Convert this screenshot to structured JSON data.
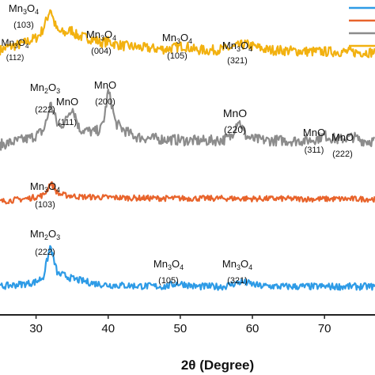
{
  "chart_data": {
    "type": "line",
    "title": "",
    "xlabel": "2θ (Degree)",
    "ylabel": "",
    "xlim": [
      25,
      77
    ],
    "ylim": [
      0,
      100
    ],
    "x_ticks": [
      30,
      40,
      50,
      60,
      70
    ],
    "grid": false,
    "legend": {
      "placement": "top-right",
      "entries": [
        {
          "name": "",
          "color": "#2e9be6"
        },
        {
          "name": "",
          "color": "#e8642c"
        },
        {
          "name": "",
          "color": "#8c8c8c"
        },
        {
          "name": "",
          "color": "#f2b110"
        }
      ]
    },
    "series": [
      {
        "color": "#f2b110",
        "x": [
          25,
          26,
          27,
          28,
          29,
          30,
          30.5,
          31,
          31.5,
          32,
          32.5,
          33,
          34,
          35,
          35.5,
          36,
          37,
          38,
          39,
          40,
          41,
          42,
          44,
          46,
          48,
          49.5,
          50.5,
          52,
          54,
          56,
          57.5,
          59,
          60.5,
          62,
          64,
          66,
          68,
          70,
          72,
          74,
          76,
          77
        ],
        "y": [
          84,
          85,
          85.5,
          86,
          87,
          88,
          89,
          91,
          94,
          97.5,
          93,
          90,
          89.5,
          90.5,
          89,
          88.5,
          88,
          87.5,
          86.5,
          86.8,
          86,
          85.5,
          85,
          84.6,
          84.4,
          85,
          85.5,
          84.2,
          84,
          84.4,
          85,
          86,
          85,
          84.2,
          84,
          83.8,
          83.6,
          83.6,
          83.6,
          83.4,
          83.4,
          83.4
        ]
      },
      {
        "color": "#8c8c8c",
        "x": [
          25,
          27,
          29,
          30,
          31,
          31.5,
          32,
          32.5,
          33,
          34,
          34.5,
          35,
          35.5,
          36,
          37,
          38,
          39,
          39.5,
          40,
          40.5,
          41,
          42,
          43,
          44,
          46,
          48,
          50,
          52,
          54,
          56,
          57,
          57.5,
          58,
          58.5,
          59,
          60,
          62,
          64,
          66,
          68,
          69,
          70,
          71,
          72,
          73,
          74,
          75,
          76,
          77
        ],
        "y": [
          54,
          55,
          56,
          57,
          58.5,
          62,
          67,
          64,
          60,
          61,
          64,
          66,
          63,
          59,
          58.5,
          58,
          59,
          63,
          71,
          67,
          61,
          59,
          57.5,
          56.5,
          56,
          55.8,
          55.5,
          55.3,
          55.3,
          55.6,
          56.5,
          59,
          62,
          60,
          57,
          55.8,
          55.4,
          55.4,
          55.3,
          55.5,
          56,
          57,
          56.2,
          55.6,
          56.2,
          56.5,
          55.5,
          55.2,
          55.2
        ]
      },
      {
        "color": "#e8642c",
        "x": [
          25,
          27,
          29,
          30,
          31,
          31.5,
          32,
          32.5,
          33,
          34,
          35,
          36,
          38,
          40,
          44,
          48,
          52,
          56,
          60,
          64,
          68,
          72,
          77
        ],
        "y": [
          36,
          36.5,
          37,
          37.5,
          38,
          39.5,
          42,
          40.5,
          38.5,
          38,
          37.8,
          37.5,
          37.4,
          37.3,
          37.1,
          37,
          37,
          37,
          36.9,
          36.9,
          36.8,
          36.8,
          36.8
        ]
      },
      {
        "color": "#2e9be6",
        "x": [
          25,
          27,
          29,
          30,
          31,
          31.5,
          32,
          32.5,
          33,
          34,
          35,
          36,
          37,
          38,
          40,
          44,
          48,
          49.5,
          50.5,
          52,
          56,
          58.5,
          59.5,
          61,
          64,
          68,
          72,
          77
        ],
        "y": [
          9,
          9.5,
          10,
          10.5,
          12,
          17,
          22,
          17,
          13,
          12.5,
          11.5,
          11,
          10.5,
          10,
          9.5,
          9.2,
          9,
          10,
          9.8,
          9,
          9,
          10.5,
          10,
          9.2,
          9,
          9,
          9,
          9
        ]
      }
    ],
    "annotations": [
      {
        "label": "Mn3O4",
        "hkl": "(103)",
        "x": 32,
        "row": 0
      },
      {
        "label": "Mn3O4",
        "hkl": "(112)",
        "x": 27,
        "row": 1
      },
      {
        "label": "Mn3O4",
        "hkl": "(004)",
        "x": 36,
        "row": 2
      },
      {
        "label": "Mn3O4",
        "hkl": "(105)",
        "x": 49.5,
        "row": 3
      },
      {
        "label": "Mn3O4",
        "hkl": "(321)",
        "x": 59,
        "row": 4
      },
      {
        "label": "Mn2O3",
        "hkl": "(222)",
        "x": 31.5,
        "row": 5
      },
      {
        "label": "MnO",
        "hkl": "(111)",
        "x": 35,
        "row": 6
      },
      {
        "label": "MnO",
        "hkl": "(200)",
        "x": 40,
        "row": 7
      },
      {
        "label": "MnO",
        "hkl": "(220)",
        "x": 58.5,
        "row": 8
      },
      {
        "label": "MnO",
        "hkl": "(311)",
        "x": 69.5,
        "row": 9
      },
      {
        "label": "MnO",
        "hkl": "(222)",
        "x": 74,
        "row": 10
      },
      {
        "label": "Mn3O4",
        "hkl": "(103)",
        "x": 32,
        "row": 11
      },
      {
        "label": "Mn2O3",
        "hkl": "(222)",
        "x": 31.5,
        "row": 12
      },
      {
        "label": "Mn3O4",
        "hkl": "(105)",
        "x": 49.5,
        "row": 13
      },
      {
        "label": "Mn3O4",
        "hkl": "(321)",
        "x": 59,
        "row": 14
      }
    ]
  }
}
